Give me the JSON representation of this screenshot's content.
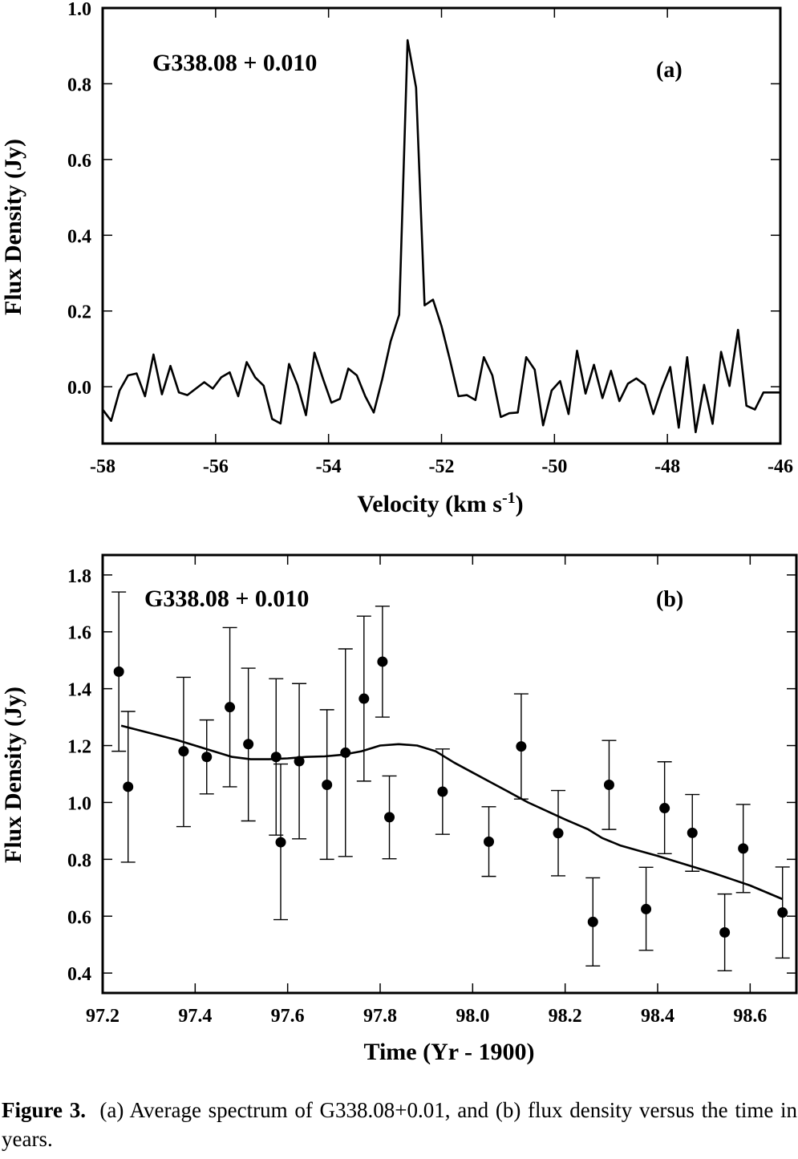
{
  "chart_data": [
    {
      "type": "line",
      "panel_label": "(a)",
      "annotation": "G338.08 + 0.010",
      "xlabel": "Velocity (km s",
      "xlabel_sup": "-1",
      "xlabel_close": ")",
      "ylabel": "Flux Density (Jy)",
      "xlim": [
        -58,
        -46
      ],
      "ylim": [
        -0.15,
        1.0
      ],
      "xticks": [
        -58,
        -56,
        -54,
        -52,
        -50,
        -48,
        -46
      ],
      "xtick_labels": [
        "-58",
        "-56",
        "-54",
        "-52",
        "-50",
        "-48",
        "-46"
      ],
      "yticks": [
        0.0,
        0.2,
        0.4,
        0.6,
        0.8,
        1.0
      ],
      "ytick_labels": [
        "0.0",
        "0.2",
        "0.4",
        "0.6",
        "0.8",
        "1.0"
      ],
      "grid": false,
      "series": [
        {
          "x": [
            -58.0,
            -57.85,
            -57.7,
            -57.55,
            -57.4,
            -57.25,
            -57.1,
            -56.95,
            -56.8,
            -56.65,
            -56.5,
            -56.35,
            -56.2,
            -56.05,
            -55.9,
            -55.75,
            -55.6,
            -55.45,
            -55.3,
            -55.15,
            -55.0,
            -54.85,
            -54.7,
            -54.55,
            -54.4,
            -54.25,
            -54.1,
            -53.95,
            -53.8,
            -53.65,
            -53.5,
            -53.35,
            -53.2,
            -53.05,
            -52.9,
            -52.75,
            -52.6,
            -52.45,
            -52.3,
            -52.15,
            -52.0,
            -51.85,
            -51.7,
            -51.55,
            -51.4,
            -51.25,
            -51.1,
            -50.95,
            -50.8,
            -50.65,
            -50.5,
            -50.35,
            -50.2,
            -50.05,
            -49.9,
            -49.75,
            -49.6,
            -49.45,
            -49.3,
            -49.15,
            -49.0,
            -48.85,
            -48.7,
            -48.55,
            -48.4,
            -48.25,
            -48.1,
            -47.95,
            -47.8,
            -47.65,
            -47.5,
            -47.35,
            -47.2,
            -47.05,
            -46.9,
            -46.75,
            -46.6,
            -46.45,
            -46.3,
            -46.15,
            -46.0
          ],
          "y": [
            -0.06,
            -0.09,
            -0.01,
            0.03,
            0.035,
            -0.025,
            0.085,
            -0.02,
            0.055,
            -0.015,
            -0.022,
            -0.005,
            0.012,
            -0.005,
            0.025,
            0.038,
            -0.025,
            0.065,
            0.025,
            0.003,
            -0.085,
            -0.097,
            0.06,
            0.005,
            -0.075,
            0.09,
            0.022,
            -0.042,
            -0.032,
            0.048,
            0.03,
            -0.025,
            -0.068,
            0.02,
            0.12,
            0.19,
            0.915,
            0.79,
            0.215,
            0.23,
            0.16,
            0.07,
            -0.025,
            -0.022,
            -0.035,
            0.078,
            0.03,
            -0.08,
            -0.07,
            -0.068,
            0.078,
            0.045,
            -0.102,
            -0.01,
            0.015,
            -0.072,
            0.095,
            -0.018,
            0.058,
            -0.03,
            0.042,
            -0.038,
            0.008,
            0.022,
            0.005,
            -0.072,
            -0.005,
            0.052,
            -0.108,
            0.078,
            -0.12,
            0.005,
            -0.098,
            0.092,
            0.002,
            0.15,
            -0.05,
            -0.06,
            -0.015,
            -0.015,
            -0.015
          ]
        }
      ]
    },
    {
      "type": "scatter",
      "panel_label": "(b)",
      "annotation": "G338.08 + 0.010",
      "xlabel": "Time (Yr - 1900)",
      "ylabel": "Flux Density (Jy)",
      "xlim": [
        97.2,
        98.7
      ],
      "ylim": [
        0.33,
        1.87
      ],
      "xticks": [
        97.2,
        97.4,
        97.6,
        97.8,
        98.0,
        98.2,
        98.4,
        98.6
      ],
      "xtick_labels": [
        "97.2",
        "97.4",
        "97.6",
        "97.8",
        "98.0",
        "98.2",
        "98.4",
        "98.6"
      ],
      "yticks": [
        0.4,
        0.6,
        0.8,
        1.0,
        1.2,
        1.4,
        1.6,
        1.8
      ],
      "ytick_labels": [
        "0.4",
        "0.6",
        "0.8",
        "1.0",
        "1.2",
        "1.4",
        "1.6",
        "1.8"
      ],
      "grid": false,
      "points": {
        "x": [
          97.235,
          97.255,
          97.375,
          97.425,
          97.475,
          97.515,
          97.575,
          97.585,
          97.625,
          97.685,
          97.725,
          97.765,
          97.805,
          97.82,
          97.935,
          98.035,
          98.105,
          98.185,
          98.26,
          98.295,
          98.375,
          98.415,
          98.475,
          98.545,
          98.585,
          98.67
        ],
        "y": [
          1.46,
          1.055,
          1.18,
          1.16,
          1.335,
          1.205,
          1.16,
          0.86,
          1.145,
          1.062,
          1.175,
          1.365,
          1.495,
          0.948,
          1.038,
          0.862,
          1.197,
          0.892,
          0.58,
          1.062,
          0.625,
          0.98,
          0.893,
          0.543,
          0.838,
          0.613
        ],
        "y_low": [
          1.18,
          0.79,
          0.915,
          1.03,
          1.055,
          0.935,
          0.885,
          0.588,
          0.872,
          0.8,
          0.81,
          1.075,
          1.3,
          0.802,
          0.888,
          0.74,
          1.012,
          0.742,
          0.425,
          0.905,
          0.48,
          0.82,
          0.758,
          0.408,
          0.683,
          0.453
        ],
        "y_high": [
          1.74,
          1.32,
          1.44,
          1.29,
          1.615,
          1.472,
          1.435,
          1.135,
          1.418,
          1.326,
          1.54,
          1.655,
          1.69,
          1.093,
          1.188,
          0.985,
          1.382,
          1.042,
          0.735,
          1.218,
          0.772,
          1.143,
          1.028,
          0.678,
          0.993,
          0.773
        ]
      },
      "trend_line": {
        "x": [
          97.24,
          97.3,
          97.36,
          97.42,
          97.48,
          97.52,
          97.56,
          97.6,
          97.64,
          97.68,
          97.72,
          97.76,
          97.8,
          97.84,
          97.88,
          97.92,
          97.96,
          98.0,
          98.04,
          98.08,
          98.12,
          98.16,
          98.2,
          98.25,
          98.28,
          98.32,
          98.36,
          98.4,
          98.44,
          98.48,
          98.52,
          98.56,
          98.6,
          98.67
        ],
        "y": [
          1.27,
          1.245,
          1.22,
          1.19,
          1.16,
          1.152,
          1.152,
          1.155,
          1.16,
          1.162,
          1.168,
          1.18,
          1.2,
          1.205,
          1.2,
          1.18,
          1.14,
          1.105,
          1.07,
          1.035,
          1.0,
          0.97,
          0.94,
          0.905,
          0.875,
          0.848,
          0.83,
          0.812,
          0.792,
          0.772,
          0.752,
          0.73,
          0.708,
          0.66
        ]
      }
    }
  ],
  "caption": {
    "label": "Figure 3.",
    "text": "(a) Average spectrum of G338.08+0.01, and (b) flux density versus the time in years."
  }
}
